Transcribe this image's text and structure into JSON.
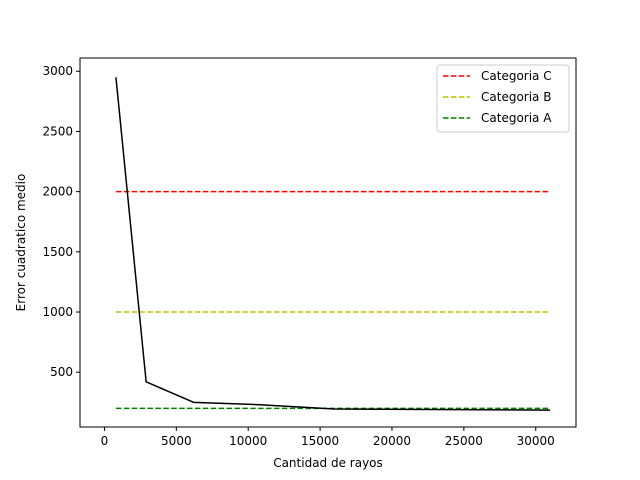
{
  "chart_data": {
    "type": "line",
    "title": "",
    "xlabel": "Cantidad de rayos",
    "ylabel": "Error cuadratico medio",
    "xlim": [
      -1700,
      32800
    ],
    "ylim": [
      45,
      3110
    ],
    "xticks": [
      0,
      5000,
      10000,
      15000,
      20000,
      25000,
      30000
    ],
    "yticks": [
      500,
      1000,
      1500,
      2000,
      2500,
      3000
    ],
    "grid": false,
    "legend_position": "upper right",
    "series": [
      {
        "name": "",
        "color": "#000000",
        "style": "solid",
        "x": [
          800,
          2900,
          6200,
          10800,
          16000,
          31000
        ],
        "y": [
          2950,
          420,
          250,
          230,
          195,
          185
        ]
      },
      {
        "name": "Categoria C",
        "color": "#ff0000",
        "style": "dashed",
        "x": [
          800,
          31000
        ],
        "y": [
          2000,
          2000
        ]
      },
      {
        "name": "Categoria B",
        "color": "#bfbf00",
        "style": "dashed",
        "x": [
          800,
          31000
        ],
        "y": [
          1000,
          1000
        ]
      },
      {
        "name": "Categoria A",
        "color": "#008000",
        "style": "dashed",
        "x": [
          800,
          31000
        ],
        "y": [
          200,
          200
        ]
      }
    ],
    "legend": [
      "Categoria C",
      "Categoria B",
      "Categoria A"
    ]
  }
}
